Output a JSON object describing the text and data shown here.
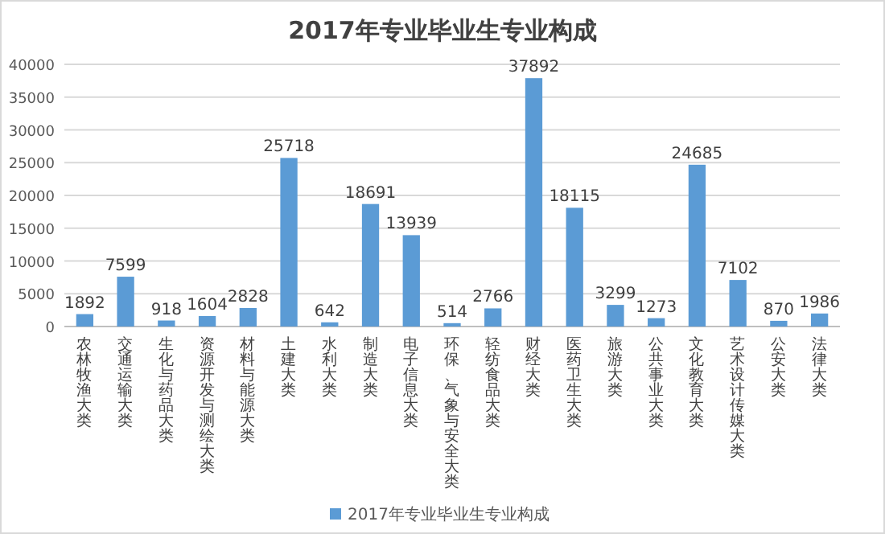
{
  "chart_data": {
    "type": "bar",
    "title": "2017年专业毕业生专业构成",
    "categories": [
      "农林牧渔大类",
      "交通运输大类",
      "生化与药品大类",
      "资源开发与测绘大类",
      "材料与能源大类",
      "土建大类",
      "水利大类",
      "制造大类",
      "电子信息大类",
      "环保、气象与安全大类",
      "轻纺食品大类",
      "财经大类",
      "医药卫生大类",
      "旅游大类",
      "公共事业大类",
      "文化教育大类",
      "艺术设计传媒大类",
      "公安大类",
      "法律大类"
    ],
    "series": [
      {
        "name": "2017年专业毕业生专业构成",
        "color": "#5b9bd5",
        "values": [
          1892,
          7599,
          918,
          1604,
          2828,
          25718,
          642,
          18691,
          13939,
          514,
          2766,
          37892,
          18115,
          3299,
          1273,
          24685,
          7102,
          870,
          1986
        ]
      }
    ],
    "ylim": [
      0,
      40000
    ],
    "yticks": [
      0,
      5000,
      10000,
      15000,
      20000,
      25000,
      30000,
      35000,
      40000
    ],
    "grid": "y",
    "data_labels": true,
    "legend": "bottom"
  }
}
